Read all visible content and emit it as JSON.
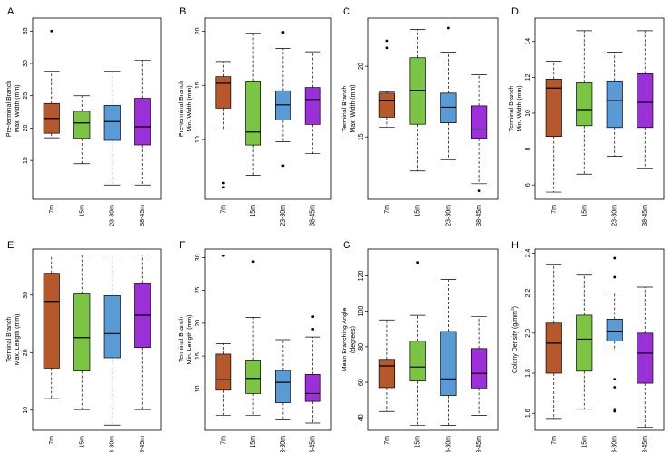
{
  "colors": {
    "7m": "#b5592c",
    "15m": "#7cc443",
    "23-30m": "#5b9bd5",
    "38-45m": "#9b30d9"
  },
  "chart_data": [
    {
      "type": "box",
      "letter": "A",
      "ylabel_lines": [
        "Pre-terminal Branch",
        "Max. Width (mm)"
      ],
      "categories": [
        "7m",
        "15m",
        "23-30m",
        "38-45m"
      ],
      "ylim": [
        9,
        37
      ],
      "yticks": [
        15,
        20,
        25,
        30,
        35
      ],
      "boxes": [
        {
          "min": 18.5,
          "q1": 19.2,
          "median": 21.5,
          "q3": 23.8,
          "max": 28.8,
          "outliers": [
            35
          ]
        },
        {
          "min": 14.5,
          "q1": 18.4,
          "median": 20.8,
          "q3": 22.6,
          "max": 25.0,
          "outliers": []
        },
        {
          "min": 11.2,
          "q1": 18.1,
          "median": 21.0,
          "q3": 23.5,
          "max": 28.8,
          "outliers": []
        },
        {
          "min": 11.2,
          "q1": 17.4,
          "median": 20.2,
          "q3": 24.6,
          "max": 30.5,
          "outliers": []
        }
      ]
    },
    {
      "type": "box",
      "letter": "B",
      "ylabel_lines": [
        "Pre-terminal Branch",
        "Min. Width (mm)"
      ],
      "categories": [
        "7m",
        "15m",
        "23-30m",
        "38-45m"
      ],
      "ylim": [
        4.5,
        21.2
      ],
      "yticks": [
        10,
        15,
        20
      ],
      "boxes": [
        {
          "min": 10.9,
          "q1": 12.9,
          "median": 15.2,
          "q3": 15.8,
          "max": 17.2,
          "outliers": [
            6.0,
            5.6
          ]
        },
        {
          "min": 6.7,
          "q1": 9.5,
          "median": 10.7,
          "q3": 15.4,
          "max": 19.8,
          "outliers": []
        },
        {
          "min": 9.8,
          "q1": 11.8,
          "median": 13.2,
          "q3": 14.5,
          "max": 18.4,
          "outliers": [
            19.9,
            7.6
          ]
        },
        {
          "min": 8.7,
          "q1": 11.4,
          "median": 13.7,
          "q3": 14.8,
          "max": 18.1,
          "outliers": []
        }
      ]
    },
    {
      "type": "box",
      "letter": "C",
      "ylabel_lines": [
        "Terminal Branch",
        "Max. Width (mm)"
      ],
      "categories": [
        "7m",
        "15m",
        "23-30m",
        "38-45m"
      ],
      "ylim": [
        10.6,
        23.4
      ],
      "yticks": [
        15,
        20
      ],
      "boxes": [
        {
          "min": 15.7,
          "q1": 16.4,
          "median": 17.6,
          "q3": 18.1,
          "max": 18.2,
          "outliers": [
            21.8,
            21.3
          ]
        },
        {
          "min": 12.6,
          "q1": 15.9,
          "median": 18.3,
          "q3": 20.6,
          "max": 22.6,
          "outliers": []
        },
        {
          "min": 13.4,
          "q1": 16.0,
          "median": 17.1,
          "q3": 18.1,
          "max": 21.0,
          "outliers": [
            22.7
          ]
        },
        {
          "min": 11.7,
          "q1": 14.9,
          "median": 15.5,
          "q3": 17.2,
          "max": 19.4,
          "outliers": [
            11.2
          ]
        }
      ]
    },
    {
      "type": "box",
      "letter": "D",
      "ylabel_lines": [
        "Terminal Branch",
        "Min. Width (mm)"
      ],
      "categories": [
        "7m",
        "15m",
        "23-30m",
        "38-45m"
      ],
      "ylim": [
        5.2,
        15.3
      ],
      "yticks": [
        6,
        8,
        10,
        12,
        14
      ],
      "boxes": [
        {
          "min": 5.6,
          "q1": 8.7,
          "median": 11.4,
          "q3": 11.9,
          "max": 12.9,
          "outliers": []
        },
        {
          "min": 6.6,
          "q1": 9.3,
          "median": 10.2,
          "q3": 11.7,
          "max": 14.6,
          "outliers": []
        },
        {
          "min": 7.6,
          "q1": 9.2,
          "median": 10.7,
          "q3": 11.8,
          "max": 13.4,
          "outliers": []
        },
        {
          "min": 6.9,
          "q1": 9.2,
          "median": 10.6,
          "q3": 12.2,
          "max": 14.6,
          "outliers": []
        }
      ]
    },
    {
      "type": "box",
      "letter": "E",
      "ylabel_lines": [
        "Terminal Branch",
        "Max. Length (mm)"
      ],
      "categories": [
        "7m",
        "15m",
        "23-30m",
        "38-45m"
      ],
      "ylim": [
        6.5,
        38
      ],
      "yticks": [
        10,
        20,
        30
      ],
      "boxes": [
        {
          "min": 12.0,
          "q1": 17.3,
          "median": 28.9,
          "q3": 33.8,
          "max": 37.0,
          "outliers": []
        },
        {
          "min": 10.1,
          "q1": 16.8,
          "median": 22.6,
          "q3": 30.2,
          "max": 37.0,
          "outliers": []
        },
        {
          "min": 7.4,
          "q1": 19.1,
          "median": 23.3,
          "q3": 29.9,
          "max": 37.0,
          "outliers": []
        },
        {
          "min": 10.1,
          "q1": 20.9,
          "median": 26.5,
          "q3": 32.1,
          "max": 37.0,
          "outliers": []
        }
      ]
    },
    {
      "type": "box",
      "letter": "F",
      "ylabel_lines": [
        "Terminal Branch",
        "Min. Length (mm)"
      ],
      "categories": [
        "7m",
        "15m",
        "23-30m",
        "38-45m"
      ],
      "ylim": [
        3.7,
        31.3
      ],
      "yticks": [
        10,
        15,
        20,
        25,
        30
      ],
      "boxes": [
        {
          "min": 6.0,
          "q1": 9.8,
          "median": 11.4,
          "q3": 15.3,
          "max": 16.9,
          "outliers": [
            30.3
          ]
        },
        {
          "min": 6.0,
          "q1": 9.3,
          "median": 11.6,
          "q3": 14.4,
          "max": 20.9,
          "outliers": [
            29.4
          ]
        },
        {
          "min": 5.3,
          "q1": 7.9,
          "median": 11.0,
          "q3": 12.8,
          "max": 17.5,
          "outliers": []
        },
        {
          "min": 4.8,
          "q1": 8.1,
          "median": 9.3,
          "q3": 12.2,
          "max": 17.9,
          "outliers": [
            21.0,
            19.1
          ]
        }
      ]
    },
    {
      "type": "box",
      "letter": "G",
      "ylabel_lines": [
        "Mean Branching Angle",
        "(degrees)"
      ],
      "categories": [
        "7m",
        "15m",
        "23-30m",
        "38-45m"
      ],
      "ylim": [
        33,
        135
      ],
      "yticks": [
        40,
        60,
        80,
        100,
        120
      ],
      "boxes": [
        {
          "min": 43.6,
          "q1": 57.0,
          "median": 69.2,
          "q3": 72.9,
          "max": 95.1,
          "outliers": []
        },
        {
          "min": 35.7,
          "q1": 60.7,
          "median": 68.6,
          "q3": 83.1,
          "max": 97.7,
          "outliers": [
            127.5
          ]
        },
        {
          "min": 35.8,
          "q1": 52.6,
          "median": 61.9,
          "q3": 88.6,
          "max": 117.9,
          "outliers": []
        },
        {
          "min": 41.4,
          "q1": 56.8,
          "median": 65.0,
          "q3": 79.0,
          "max": 97.1,
          "outliers": []
        }
      ]
    },
    {
      "type": "box",
      "letter": "H",
      "ylabel_lines": [
        "Colony Density (g/mm",
        ")"
      ],
      "ylabel_superscript": "3",
      "categories": [
        "7m",
        "15m",
        "23-30m",
        "38-45m"
      ],
      "ylim": [
        1.515,
        2.42
      ],
      "yticks": [
        1.6,
        1.8,
        2.0,
        2.2,
        2.4
      ],
      "yticklabels": [
        "1.6",
        "1.8",
        "2.0",
        "2.2",
        "2.4"
      ],
      "boxes": [
        {
          "min": 1.57,
          "q1": 1.8,
          "median": 1.95,
          "q3": 2.05,
          "max": 2.34,
          "outliers": []
        },
        {
          "min": 1.62,
          "q1": 1.81,
          "median": 1.97,
          "q3": 2.09,
          "max": 2.29,
          "outliers": []
        },
        {
          "min": 1.91,
          "q1": 1.96,
          "median": 2.01,
          "q3": 2.07,
          "max": 2.2,
          "outliers": [
            2.375,
            2.28,
            1.77,
            1.73,
            1.62,
            1.61
          ]
        },
        {
          "min": 1.53,
          "q1": 1.75,
          "median": 1.9,
          "q3": 2.0,
          "max": 2.23,
          "outliers": []
        }
      ]
    }
  ]
}
